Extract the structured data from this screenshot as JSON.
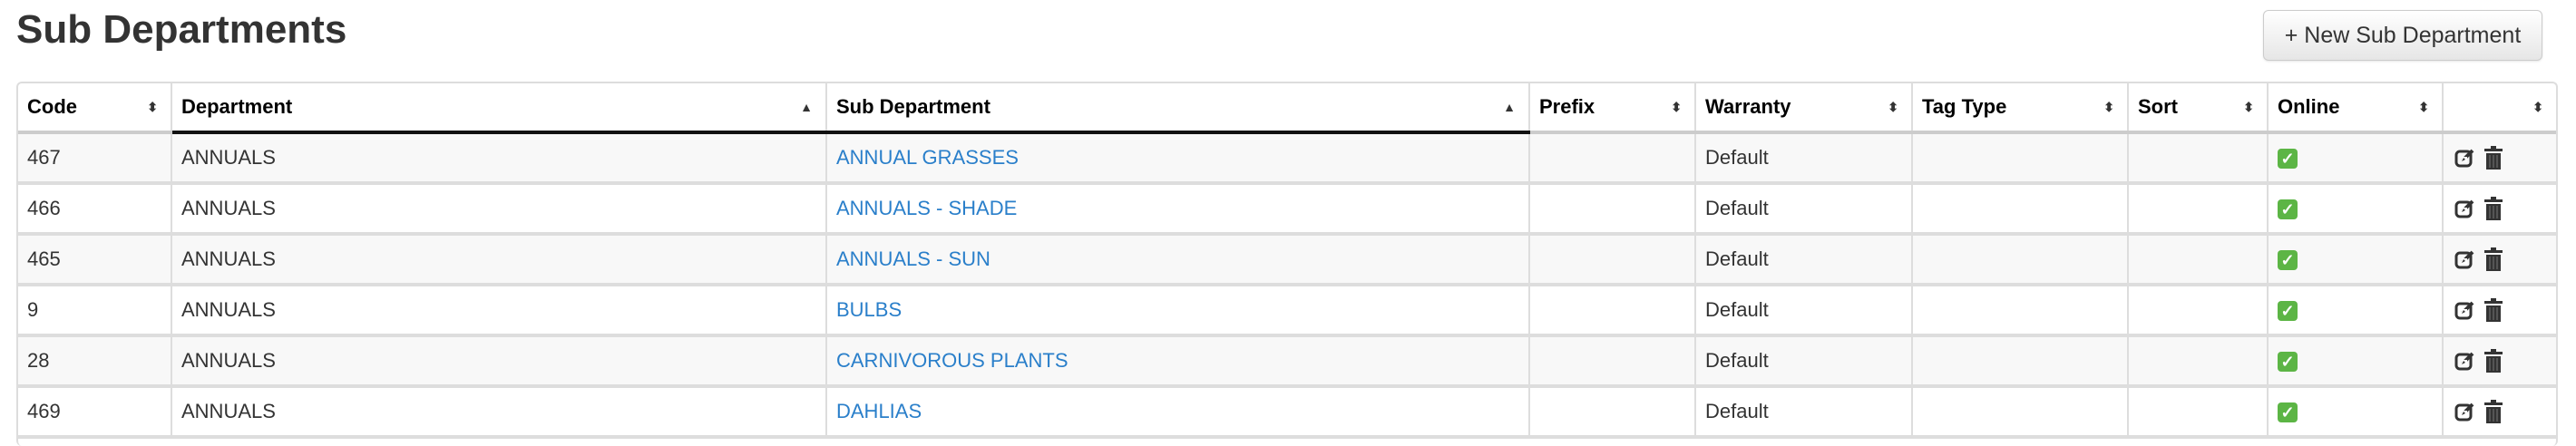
{
  "page_title": "Sub Departments",
  "new_button": "+ New Sub Department",
  "columns": [
    "Code",
    "Department",
    "Sub Department",
    "Prefix",
    "Warranty",
    "Tag Type",
    "Sort",
    "Online",
    ""
  ],
  "sort_icons": {
    "neutral": "⬍",
    "ascending": "▲"
  },
  "rows": [
    {
      "code": "467",
      "department": "ANNUALS",
      "sub_department": "ANNUAL GRASSES",
      "prefix": "",
      "warranty": "Default",
      "tag_type": "",
      "sort": "",
      "online": true
    },
    {
      "code": "466",
      "department": "ANNUALS",
      "sub_department": "ANNUALS - SHADE",
      "prefix": "",
      "warranty": "Default",
      "tag_type": "",
      "sort": "",
      "online": true
    },
    {
      "code": "465",
      "department": "ANNUALS",
      "sub_department": "ANNUALS - SUN",
      "prefix": "",
      "warranty": "Default",
      "tag_type": "",
      "sort": "",
      "online": true
    },
    {
      "code": "9",
      "department": "ANNUALS",
      "sub_department": "BULBS",
      "prefix": "",
      "warranty": "Default",
      "tag_type": "",
      "sort": "",
      "online": true
    },
    {
      "code": "28",
      "department": "ANNUALS",
      "sub_department": "CARNIVOROUS PLANTS",
      "prefix": "",
      "warranty": "Default",
      "tag_type": "",
      "sort": "",
      "online": true
    },
    {
      "code": "469",
      "department": "ANNUALS",
      "sub_department": "DAHLIAS",
      "prefix": "",
      "warranty": "Default",
      "tag_type": "",
      "sort": "",
      "online": true
    }
  ],
  "colors": {
    "link": "#2a7fca",
    "check": "#5cb545"
  }
}
